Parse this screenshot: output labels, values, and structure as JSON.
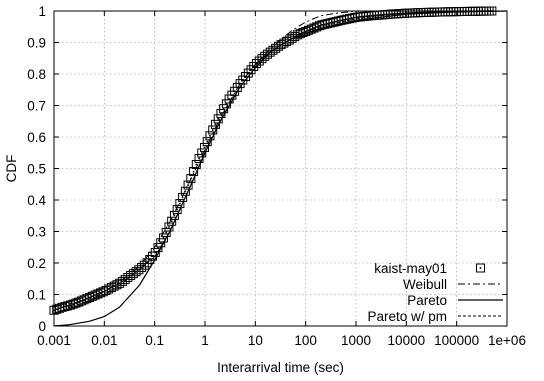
{
  "chart_data": {
    "type": "line",
    "title": "",
    "xlabel": "Interarrival time (sec)",
    "ylabel": "CDF",
    "x_scale": "log",
    "xlim": [
      0.001,
      1000000
    ],
    "ylim": [
      0,
      1
    ],
    "x_tick_labels": [
      "0.001",
      "0.01",
      "0.1",
      "1",
      "10",
      "100",
      "1000",
      "10000",
      "100000",
      "1e+06"
    ],
    "x_tick_values": [
      0.001,
      0.01,
      0.1,
      1,
      10,
      100,
      1000,
      10000,
      100000,
      1000000
    ],
    "y_tick_labels": [
      "0",
      "0.1",
      "0.2",
      "0.3",
      "0.4",
      "0.5",
      "0.6",
      "0.7",
      "0.8",
      "0.9",
      "1"
    ],
    "y_tick_values": [
      0,
      0.1,
      0.2,
      0.3,
      0.4,
      0.5,
      0.6,
      0.7,
      0.8,
      0.9,
      1
    ],
    "grid": true,
    "legend_position": "bottom-right",
    "series": [
      {
        "name": "kaist-may01",
        "style": "square-markers",
        "x": [
          0.001,
          0.0015,
          0.002,
          0.003,
          0.005,
          0.007,
          0.01,
          0.015,
          0.02,
          0.03,
          0.05,
          0.07,
          0.1,
          0.15,
          0.2,
          0.3,
          0.5,
          0.7,
          1,
          1.5,
          2,
          3,
          5,
          7,
          10,
          15,
          20,
          30,
          50,
          70,
          100,
          200,
          500,
          1000,
          2000,
          5000,
          10000,
          20000,
          50000,
          100000,
          200000,
          500000
        ],
        "y": [
          0.05,
          0.06,
          0.065,
          0.075,
          0.09,
          0.1,
          0.11,
          0.125,
          0.135,
          0.155,
          0.18,
          0.2,
          0.23,
          0.28,
          0.32,
          0.38,
          0.46,
          0.52,
          0.57,
          0.63,
          0.67,
          0.72,
          0.77,
          0.8,
          0.83,
          0.855,
          0.87,
          0.89,
          0.91,
          0.925,
          0.935,
          0.955,
          0.97,
          0.98,
          0.985,
          0.99,
          0.993,
          0.995,
          0.997,
          0.998,
          0.999,
          1.0
        ]
      },
      {
        "name": "Weibull",
        "style": "dash-dot",
        "x": [
          0.001,
          0.002,
          0.005,
          0.01,
          0.02,
          0.05,
          0.1,
          0.2,
          0.5,
          1,
          2,
          5,
          10,
          20,
          50,
          100,
          200,
          500,
          1000,
          2000,
          5000,
          1000000
        ],
        "y": [
          0.04,
          0.06,
          0.08,
          0.11,
          0.14,
          0.19,
          0.25,
          0.33,
          0.46,
          0.56,
          0.66,
          0.77,
          0.83,
          0.88,
          0.935,
          0.965,
          0.985,
          0.995,
          0.999,
          1.0,
          1.0,
          1.0
        ]
      },
      {
        "name": "Pareto",
        "style": "solid",
        "x": [
          0.001,
          0.002,
          0.005,
          0.01,
          0.02,
          0.05,
          0.1,
          0.2,
          0.5,
          1,
          2,
          5,
          10,
          20,
          50,
          100,
          200,
          500,
          1000,
          3000,
          10000,
          100000,
          1000000
        ],
        "y": [
          0.0,
          0.004,
          0.015,
          0.03,
          0.06,
          0.13,
          0.21,
          0.3,
          0.44,
          0.55,
          0.65,
          0.76,
          0.82,
          0.87,
          0.91,
          0.93,
          0.945,
          0.96,
          0.97,
          0.98,
          0.99,
          0.997,
          1.0
        ]
      },
      {
        "name": "Pareto w/ pm",
        "style": "dashed",
        "x": [
          0.001,
          0.002,
          0.005,
          0.01,
          0.02,
          0.05,
          0.1,
          0.2,
          0.5,
          1,
          2,
          5,
          10,
          20,
          50,
          100,
          200,
          500,
          1000,
          3000,
          10000,
          100000,
          1000000
        ],
        "y": [
          0.06,
          0.07,
          0.085,
          0.1,
          0.13,
          0.18,
          0.22,
          0.3,
          0.44,
          0.55,
          0.65,
          0.76,
          0.82,
          0.87,
          0.91,
          0.935,
          0.95,
          0.965,
          0.975,
          0.985,
          0.992,
          0.998,
          1.0
        ]
      }
    ]
  }
}
